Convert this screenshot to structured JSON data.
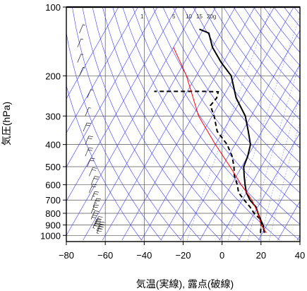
{
  "chart_data": {
    "type": "line",
    "xlabel": "気温(実線), 露点(破線)",
    "ylabel": "気圧(hPa)",
    "xlim": [
      -80,
      40
    ],
    "ylim": [
      1050,
      100
    ],
    "yscale": "log",
    "x_ticks": [
      -80,
      -60,
      -40,
      -20,
      0,
      20,
      40
    ],
    "y_ticks": [
      100,
      200,
      300,
      400,
      500,
      600,
      700,
      800,
      900,
      1000
    ],
    "mixing_ratio_labels": [
      "1",
      "5",
      "10",
      "15",
      "20g"
    ],
    "series": [
      {
        "style": "solid",
        "color": "#000000",
        "points": [
          [
            21,
            975
          ],
          [
            18,
            900
          ],
          [
            15,
            850
          ],
          [
            12,
            800
          ],
          [
            9,
            750
          ],
          [
            4,
            700
          ],
          [
            0,
            650
          ],
          [
            -3,
            600
          ],
          [
            -6,
            550
          ],
          [
            -9,
            500
          ],
          [
            -10,
            450
          ],
          [
            -12,
            400
          ],
          [
            -17,
            350
          ],
          [
            -23,
            300
          ],
          [
            -33,
            250
          ],
          [
            -42,
            200
          ],
          [
            -51,
            175
          ],
          [
            -60,
            150
          ],
          [
            -66,
            130
          ],
          [
            -72,
            125
          ]
        ]
      },
      {
        "style": "dashed",
        "color": "#000000",
        "points": [
          [
            19,
            975
          ],
          [
            17,
            900
          ],
          [
            15,
            850
          ],
          [
            10,
            800
          ],
          [
            6,
            750
          ],
          [
            1,
            700
          ],
          [
            -4,
            650
          ],
          [
            -7,
            600
          ],
          [
            -11,
            550
          ],
          [
            -14,
            500
          ],
          [
            -18,
            450
          ],
          [
            -24,
            400
          ],
          [
            -33,
            350
          ],
          [
            -39,
            300
          ],
          [
            -44,
            270
          ],
          [
            -43,
            250
          ],
          [
            -44,
            235
          ],
          [
            -51,
            234
          ],
          [
            -59,
            234
          ],
          [
            -67,
            234
          ],
          [
            -77,
            234
          ]
        ]
      },
      {
        "style": "solid",
        "color": "#ff0000",
        "points": [
          [
            22,
            975
          ],
          [
            17,
            900
          ],
          [
            12,
            800
          ],
          [
            5,
            700
          ],
          [
            -5,
            600
          ],
          [
            -16,
            500
          ],
          [
            -30,
            400
          ],
          [
            -47,
            300
          ],
          [
            -65,
            200
          ],
          [
            -80,
            150
          ]
        ]
      }
    ],
    "wind_barbs": [
      [
        975,
        -65,
        25
      ],
      [
        950,
        -65,
        25
      ],
      [
        925,
        -67,
        25
      ],
      [
        900,
        -66,
        20
      ],
      [
        850,
        -68,
        20
      ],
      [
        800,
        -68,
        15
      ],
      [
        750,
        -67,
        15
      ],
      [
        700,
        -68,
        15
      ],
      [
        650,
        -69,
        10
      ],
      [
        600,
        -68,
        10
      ],
      [
        550,
        -69,
        10
      ],
      [
        500,
        -70,
        10
      ],
      [
        450,
        -71,
        10
      ],
      [
        400,
        -71,
        10
      ],
      [
        350,
        -72,
        10
      ],
      [
        300,
        -71,
        5
      ],
      [
        250,
        -70,
        5
      ],
      [
        200,
        -74,
        5
      ],
      [
        175,
        -75,
        5
      ],
      [
        150,
        -75,
        5
      ],
      [
        130,
        -74,
        5
      ]
    ]
  }
}
